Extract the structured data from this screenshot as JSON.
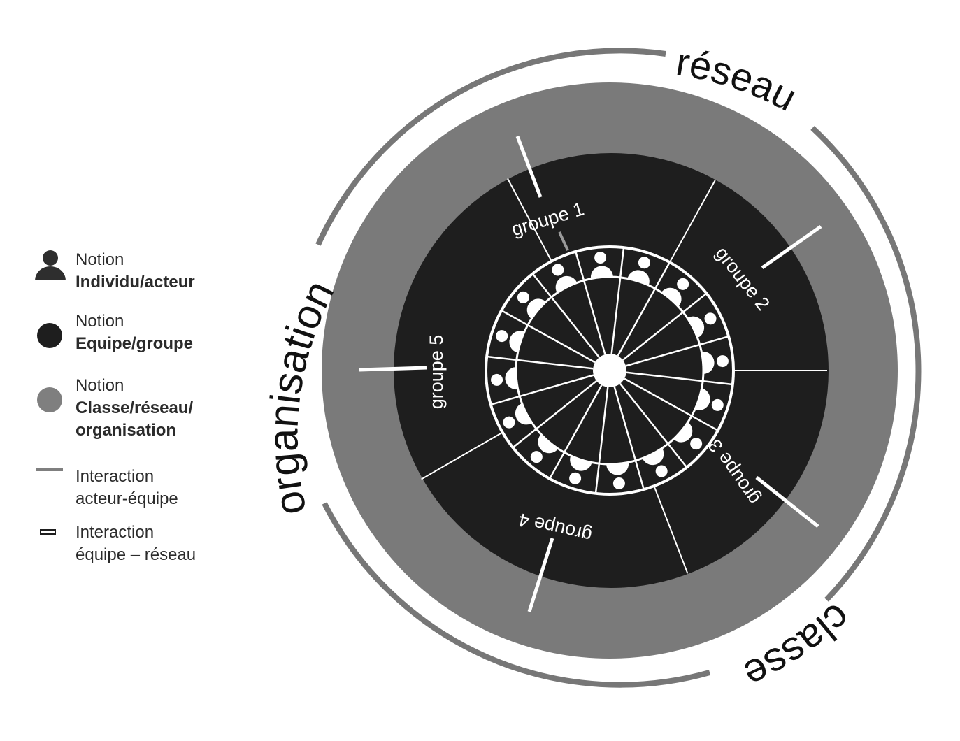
{
  "diagram": {
    "outer_labels": {
      "top": "réseau",
      "left": "organisation",
      "bottom_right": "classe"
    },
    "groups": [
      {
        "label": "groupe 1"
      },
      {
        "label": "groupe 2"
      },
      {
        "label": "groupe 3"
      },
      {
        "label": "groupe 4"
      },
      {
        "label": "groupe 5"
      }
    ],
    "individual_count": 16
  },
  "legend": {
    "items": [
      {
        "icon": "person-icon",
        "line1": "Notion",
        "line2": "Individu/acteur"
      },
      {
        "icon": "dark-circle-icon",
        "line1": "Notion",
        "line2": "Equipe/groupe"
      },
      {
        "icon": "gray-circle-icon",
        "line1": "Notion",
        "line2": "Classe/réseau/",
        "line3": "organisation"
      },
      {
        "icon": "gray-line-icon",
        "line1": "Interaction",
        "line2": "acteur-équipe"
      },
      {
        "icon": "white-bar-icon",
        "line1": "Interaction",
        "line2": "équipe – réseau"
      }
    ]
  },
  "colors": {
    "outer_ring": "#7a7a7a",
    "group_disc": "#1e1e1e",
    "arc_lines": "#777777",
    "divider": "#ffffff",
    "legend_person": "#2e2e2e",
    "legend_gray": "#7f7f7f"
  }
}
